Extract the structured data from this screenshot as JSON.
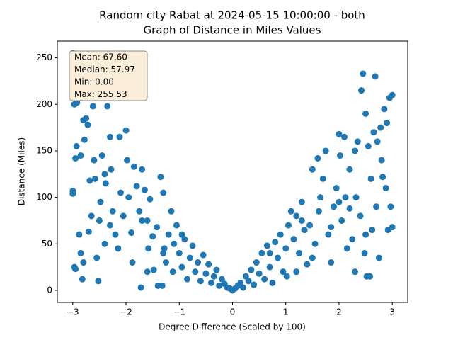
{
  "chart_data": {
    "type": "scatter",
    "title": [
      "Random city Rabat at 2024-05-15 10:00:00  - both",
      "Graph of Distance in Miles Values"
    ],
    "x_label": "Degree Difference (Scaled by 100)",
    "y_label": "Distance (Miles)",
    "annotation_lines": [
      "Mean: 67.60",
      "Median: 57.97",
      "Min: 0.00",
      "Max: 255.53"
    ],
    "xlim": [
      -3.29,
      3.29
    ],
    "ylim": [
      -13,
      268
    ],
    "xticks": [
      {
        "value": -3,
        "label": "−3"
      },
      {
        "value": -2,
        "label": "−2"
      },
      {
        "value": -1,
        "label": "−1"
      },
      0,
      1,
      2,
      3
    ],
    "yticks": [
      0,
      50,
      100,
      150,
      200,
      250
    ],
    "series": [
      {
        "color": "#1f77b4",
        "x": [
          -3,
          -3,
          -2.95,
          -2.97,
          -2.92,
          -2.93,
          -2.95,
          -3,
          -3,
          -2.97,
          -2.95,
          -2.88,
          -2.85,
          -2.82,
          -2.8,
          -2.85,
          -2.8,
          -2.78,
          -2.75,
          -2.72,
          -2.7,
          -2.68,
          -2.7,
          -2.65,
          -2.62,
          -2.6,
          -2.58,
          -2.55,
          -2.52,
          -2.5,
          -2.48,
          -2.45,
          -2.4,
          -2.38,
          -2.35,
          -2.3,
          -2.28,
          -2.25,
          -2.2,
          -2.15,
          -2.12,
          -2.1,
          -2.05,
          -2,
          -1.98,
          -1.95,
          -1.9,
          -1.88,
          -1.85,
          -1.8,
          -1.75,
          -1.72,
          -1.7,
          -1.65,
          -1.6,
          -1.58,
          -1.55,
          -1.5,
          -1.48,
          -1.42,
          -1.4,
          -1.35,
          -1.32,
          -1.3,
          -1.28,
          -1.25,
          -1.2,
          -1.15,
          -1.12,
          -1.1,
          -1.05,
          -1,
          -0.95,
          -0.9,
          -0.85,
          -0.8,
          -0.75,
          -0.7,
          -0.65,
          -0.6,
          -0.55,
          -0.5,
          -0.45,
          -0.4,
          -0.35,
          -0.3,
          -0.25,
          -0.2,
          -0.15,
          -0.1,
          -0.05,
          0,
          -2.3,
          -2.4,
          -1.7,
          -1.6,
          -1.3,
          -0.95,
          0.05,
          0.1,
          0.15,
          0.2,
          0.25,
          0.3,
          0.35,
          0.4,
          0.45,
          0.5,
          0.55,
          0.6,
          0.65,
          0.7,
          0.75,
          0.8,
          0.85,
          0.9,
          0.95,
          1,
          1.02,
          1.05,
          1.1,
          1.15,
          1.2,
          1.25,
          1.3,
          1.35,
          1.4,
          1.45,
          1.5,
          1.55,
          1.6,
          1.62,
          1.65,
          1.7,
          1.75,
          1.8,
          1.85,
          1.9,
          1.95,
          2,
          2.02,
          2.05,
          2.1,
          2.12,
          2.15,
          2.2,
          2.25,
          2.3,
          2.32,
          2.35,
          2.4,
          2.42,
          2.45,
          2.48,
          2.5,
          2.52,
          2.55,
          2.58,
          2.6,
          2.62,
          2.65,
          2.68,
          2.7,
          2.72,
          2.75,
          2.78,
          2.8,
          2.82,
          2.85,
          2.88,
          2.9,
          2.92,
          2.95,
          2.97,
          3,
          3,
          2.5,
          2.3,
          2.2,
          1.85,
          1.5,
          1.2,
          0.7,
          2,
          1.3
        ],
        "values": [
          255,
          213,
          230,
          200,
          202,
          155,
          142,
          107,
          104,
          25,
          23,
          60,
          40,
          12,
          30,
          145,
          183,
          162,
          185,
          178,
          233,
          118,
          63,
          80,
          198,
          140,
          120,
          35,
          10,
          75,
          95,
          145,
          125,
          115,
          198,
          165,
          130,
          85,
          60,
          45,
          165,
          105,
          80,
          172,
          140,
          100,
          62,
          30,
          133,
          112,
          85,
          3,
          130,
          108,
          75,
          45,
          98,
          58,
          22,
          68,
          5,
          122,
          5,
          105,
          45,
          30,
          60,
          85,
          20,
          50,
          70,
          40,
          25,
          55,
          12,
          35,
          48,
          20,
          30,
          10,
          38,
          18,
          28,
          8,
          15,
          22,
          5,
          12,
          7,
          3,
          2,
          0,
          70,
          50,
          75,
          20,
          40,
          60,
          2,
          5,
          8,
          3,
          15,
          10,
          22,
          6,
          30,
          18,
          40,
          12,
          48,
          25,
          8,
          52,
          35,
          60,
          20,
          45,
          15,
          70,
          85,
          55,
          80,
          40,
          95,
          65,
          28,
          70,
          130,
          50,
          142,
          85,
          100,
          120,
          150,
          60,
          30,
          90,
          110,
          168,
          145,
          75,
          165,
          100,
          45,
          130,
          55,
          150,
          100,
          160,
          80,
          215,
          233,
          40,
          190,
          15,
          155,
          15,
          120,
          65,
          170,
          230,
          90,
          160,
          35,
          175,
          140,
          122,
          195,
          110,
          180,
          65,
          207,
          90,
          210,
          68,
          60,
          20,
          88,
          68,
          35,
          20,
          40,
          95,
          75
        ]
      }
    ]
  }
}
